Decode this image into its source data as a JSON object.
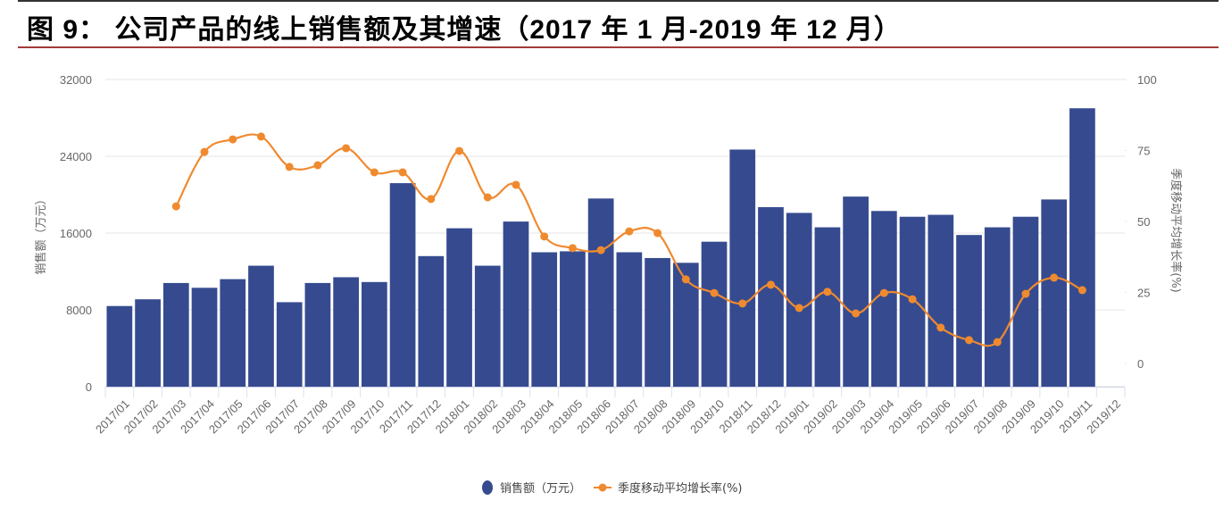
{
  "title": "图 9： 公司产品的线上销售额及其增速（2017 年 1 月-2019 年 12 月）",
  "chart_data": {
    "type": "bar+line",
    "categories": [
      "2017/01",
      "2017/02",
      "2017/03",
      "2017/04",
      "2017/05",
      "2017/06",
      "2017/07",
      "2017/08",
      "2017/09",
      "2017/10",
      "2017/11",
      "2017/12",
      "2018/01",
      "2018/02",
      "2018/03",
      "2018/04",
      "2018/05",
      "2018/06",
      "2018/07",
      "2018/08",
      "2018/09",
      "2018/10",
      "2018/11",
      "2018/12",
      "2019/01",
      "2019/02",
      "2019/03",
      "2019/04",
      "2019/05",
      "2019/06",
      "2019/07",
      "2019/08",
      "2019/09",
      "2019/10",
      "2019/11",
      "2019/12"
    ],
    "series": [
      {
        "name": "销售额（万元）",
        "type": "bar",
        "axis": "left",
        "color": "#364b8f",
        "values": [
          8400,
          9100,
          10800,
          10300,
          11200,
          12600,
          8800,
          10800,
          11400,
          10900,
          21200,
          13600,
          16500,
          12600,
          17200,
          14000,
          14100,
          19600,
          14000,
          13400,
          12900,
          15100,
          24700,
          18700,
          18100,
          16600,
          19800,
          18300,
          17700,
          17900,
          15800,
          16600,
          17700,
          19500,
          29000,
          null
        ]
      },
      {
        "name": "季度移动平均增长率(%)",
        "type": "line",
        "axis": "right",
        "color": "#ef8a2f",
        "smooth": true,
        "values": [
          null,
          null,
          55.3,
          74.5,
          78.9,
          79.9,
          69.2,
          69.8,
          75.8,
          67.3,
          67.3,
          57.9,
          74.8,
          58.5,
          62.9,
          44.7,
          40.6,
          39.9,
          46.5,
          45.9,
          29.6,
          24.8,
          21.1,
          27.7,
          19.5,
          25.2,
          17.6,
          24.8,
          22.6,
          12.6,
          8.2,
          7.5,
          24.5,
          30.2,
          25.8,
          null
        ]
      }
    ],
    "ylabel": "销售额（万元）",
    "ylabel_right": "季度移动平均增长率(%)",
    "ylim": [
      0,
      32000
    ],
    "yticks": [
      0,
      8000,
      16000,
      24000,
      32000
    ],
    "ylim_right": [
      -8.2,
      100
    ],
    "yticks_right": [
      0,
      25,
      50,
      75,
      100
    ],
    "grid": true,
    "legend": "bottom-center",
    "legend_items": [
      "销售额（万元）",
      "季度移动平均增长率(%)"
    ]
  }
}
